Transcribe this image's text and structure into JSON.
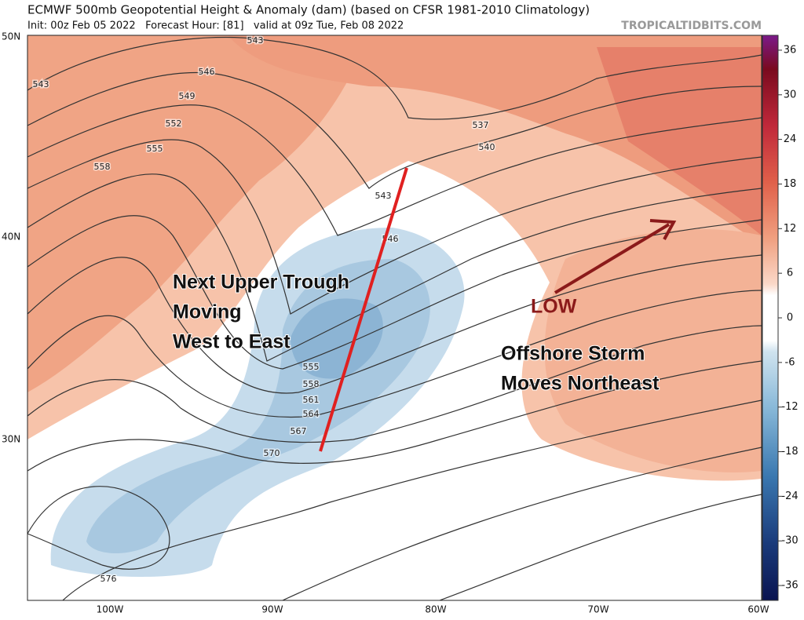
{
  "header": {
    "title": "ECMWF 500mb Geopotential Height & Anomaly (dam) (based on CFSR 1981-2010 Climatology)",
    "subtitle": "Init: 00z Feb 05 2022   Forecast Hour: [81]   valid at 09z Tue, Feb 08 2022",
    "site": "TROPICALTIDBITS.COM"
  },
  "map": {
    "lat_labels": [
      "50N",
      "40N",
      "30N"
    ],
    "lon_labels": [
      "100W",
      "90W",
      "80W",
      "70W",
      "60W"
    ],
    "contour_labels": [
      "543",
      "546",
      "549",
      "552",
      "555",
      "558",
      "543",
      "537",
      "540",
      "543",
      "546",
      "555",
      "558",
      "561",
      "564",
      "567",
      "570",
      "576"
    ],
    "annotations": [
      "Next Upper Trough",
      "Moving",
      "West to East",
      "LOW",
      "Offshore Storm",
      "Moves Northeast"
    ]
  },
  "colorbar": {
    "range": [
      -38,
      38
    ],
    "ticks": [
      36,
      30,
      24,
      18,
      12,
      6,
      0,
      -6,
      -12,
      -18,
      -24,
      -30,
      -36
    ]
  }
}
